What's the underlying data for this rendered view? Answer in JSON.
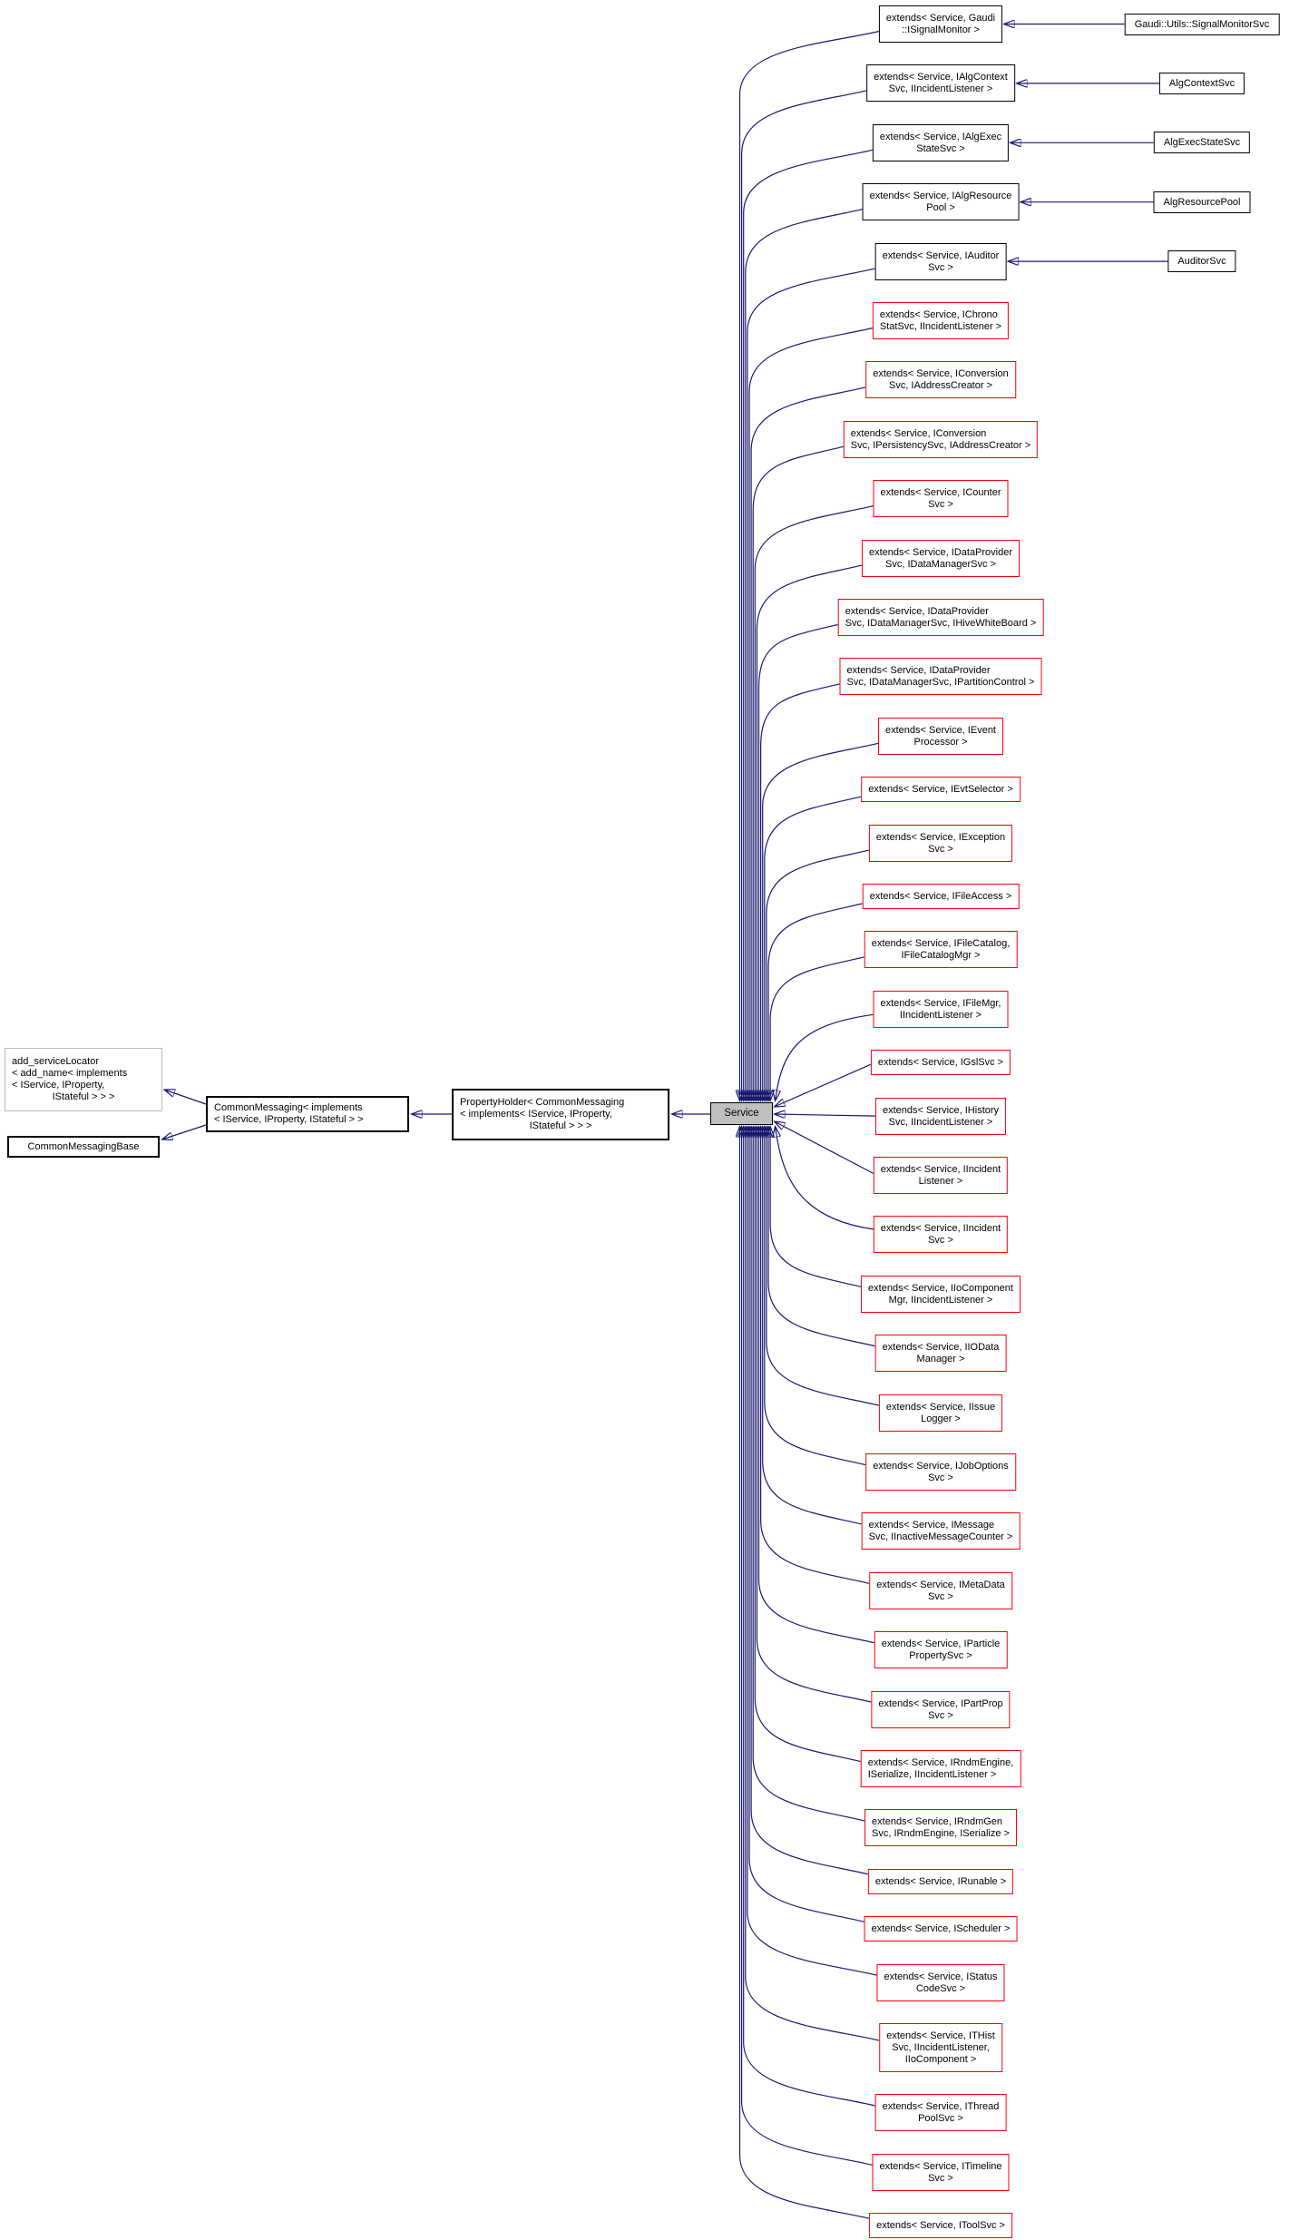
{
  "diagram": {
    "kind": "doxygen-inheritance-graph",
    "colors": {
      "edge": "#191970",
      "documented_border": "#000000",
      "truncated_border": "#fb0007",
      "undocumented_border": "#b9b9b9",
      "focus_fill": "#bfbfbf",
      "background": "#ffffff"
    },
    "base_chain": {
      "add_service_locator": {
        "lines": [
          "add_serviceLocator",
          "< add_name< implements",
          "< IService, IProperty,",
          "IStateful > > >"
        ]
      },
      "common_messaging_base": {
        "lines": [
          "CommonMessagingBase"
        ]
      },
      "common_messaging": {
        "lines": [
          "CommonMessaging< implements",
          "< IService, IProperty, IStateful > >"
        ]
      },
      "property_holder": {
        "lines": [
          "PropertyHolder< CommonMessaging",
          "< implements< IService, IProperty,",
          "IStateful > > >"
        ]
      },
      "service": {
        "lines": [
          "Service"
        ]
      }
    },
    "extends_nodes": [
      {
        "lines": [
          "extends< Service, Gaudi",
          "::ISignalMonitor >"
        ],
        "border": "black",
        "derived": "Gaudi::Utils::SignalMonitorSvc"
      },
      {
        "lines": [
          "extends< Service, IAlgContext",
          "Svc, IIncidentListener >"
        ],
        "border": "black",
        "derived": "AlgContextSvc"
      },
      {
        "lines": [
          "extends< Service, IAlgExec",
          "StateSvc >"
        ],
        "border": "black",
        "derived": "AlgExecStateSvc"
      },
      {
        "lines": [
          "extends< Service, IAlgResource",
          "Pool >"
        ],
        "border": "black",
        "derived": "AlgResourcePool"
      },
      {
        "lines": [
          "extends< Service, IAuditor",
          "Svc >"
        ],
        "border": "black",
        "derived": "AuditorSvc"
      },
      {
        "lines": [
          "extends< Service, IChrono",
          "StatSvc, IIncidentListener >"
        ],
        "border": "red"
      },
      {
        "lines": [
          "extends< Service, IConversion",
          "Svc, IAddressCreator >"
        ],
        "border": "red"
      },
      {
        "lines": [
          "extends< Service, IConversion",
          "Svc, IPersistencySvc, IAddressCreator >"
        ],
        "border": "red"
      },
      {
        "lines": [
          "extends< Service, ICounter",
          "Svc >"
        ],
        "border": "red"
      },
      {
        "lines": [
          "extends< Service, IDataProvider",
          "Svc, IDataManagerSvc >"
        ],
        "border": "red"
      },
      {
        "lines": [
          "extends< Service, IDataProvider",
          "Svc, IDataManagerSvc, IHiveWhiteBoard >"
        ],
        "border": "red"
      },
      {
        "lines": [
          "extends< Service, IDataProvider",
          "Svc, IDataManagerSvc, IPartitionControl >"
        ],
        "border": "red"
      },
      {
        "lines": [
          "extends< Service, IEvent",
          "Processor >"
        ],
        "border": "red"
      },
      {
        "lines": [
          "extends< Service, IEvtSelector >"
        ],
        "border": "red"
      },
      {
        "lines": [
          "extends< Service, IException",
          "Svc >"
        ],
        "border": "red"
      },
      {
        "lines": [
          "extends< Service, IFileAccess >"
        ],
        "border": "red"
      },
      {
        "lines": [
          "extends< Service, IFileCatalog,",
          "IFileCatalogMgr >"
        ],
        "border": "red"
      },
      {
        "lines": [
          "extends< Service, IFileMgr,",
          "IIncidentListener >"
        ],
        "border": "red"
      },
      {
        "lines": [
          "extends< Service, IGslSvc >"
        ],
        "border": "red"
      },
      {
        "lines": [
          "extends< Service, IHistory",
          "Svc, IIncidentListener >"
        ],
        "border": "red"
      },
      {
        "lines": [
          "extends< Service, IIncident",
          "Listener >"
        ],
        "border": "red"
      },
      {
        "lines": [
          "extends< Service, IIncident",
          "Svc >"
        ],
        "border": "red"
      },
      {
        "lines": [
          "extends< Service, IIoComponent",
          "Mgr, IIncidentListener >"
        ],
        "border": "red"
      },
      {
        "lines": [
          "extends< Service, IIOData",
          "Manager >"
        ],
        "border": "red"
      },
      {
        "lines": [
          "extends< Service, IIssue",
          "Logger >"
        ],
        "border": "red"
      },
      {
        "lines": [
          "extends< Service, IJobOptions",
          "Svc >"
        ],
        "border": "red"
      },
      {
        "lines": [
          "extends< Service, IMessage",
          "Svc, IInactiveMessageCounter >"
        ],
        "border": "red"
      },
      {
        "lines": [
          "extends< Service, IMetaData",
          "Svc >"
        ],
        "border": "red"
      },
      {
        "lines": [
          "extends< Service, IParticle",
          "PropertySvc >"
        ],
        "border": "red"
      },
      {
        "lines": [
          "extends< Service, IPartProp",
          "Svc >"
        ],
        "border": "red"
      },
      {
        "lines": [
          "extends< Service, IRndmEngine,",
          "ISerialize, IIncidentListener >"
        ],
        "border": "red"
      },
      {
        "lines": [
          "extends< Service, IRndmGen",
          "Svc, IRndmEngine, ISerialize >"
        ],
        "border": "red"
      },
      {
        "lines": [
          "extends< Service, IRunable >"
        ],
        "border": "red"
      },
      {
        "lines": [
          "extends< Service, IScheduler >"
        ],
        "border": "red"
      },
      {
        "lines": [
          "extends< Service, IStatus",
          "CodeSvc >"
        ],
        "border": "red"
      },
      {
        "lines": [
          "extends< Service, ITHist",
          "Svc, IIncidentListener,",
          "IIoComponent >"
        ],
        "border": "red"
      },
      {
        "lines": [
          "extends< Service, IThread",
          "PoolSvc >"
        ],
        "border": "red"
      },
      {
        "lines": [
          "extends< Service, ITimeline",
          "Svc >"
        ],
        "border": "red"
      },
      {
        "lines": [
          "extends< Service, IToolSvc >"
        ],
        "border": "red"
      }
    ]
  }
}
